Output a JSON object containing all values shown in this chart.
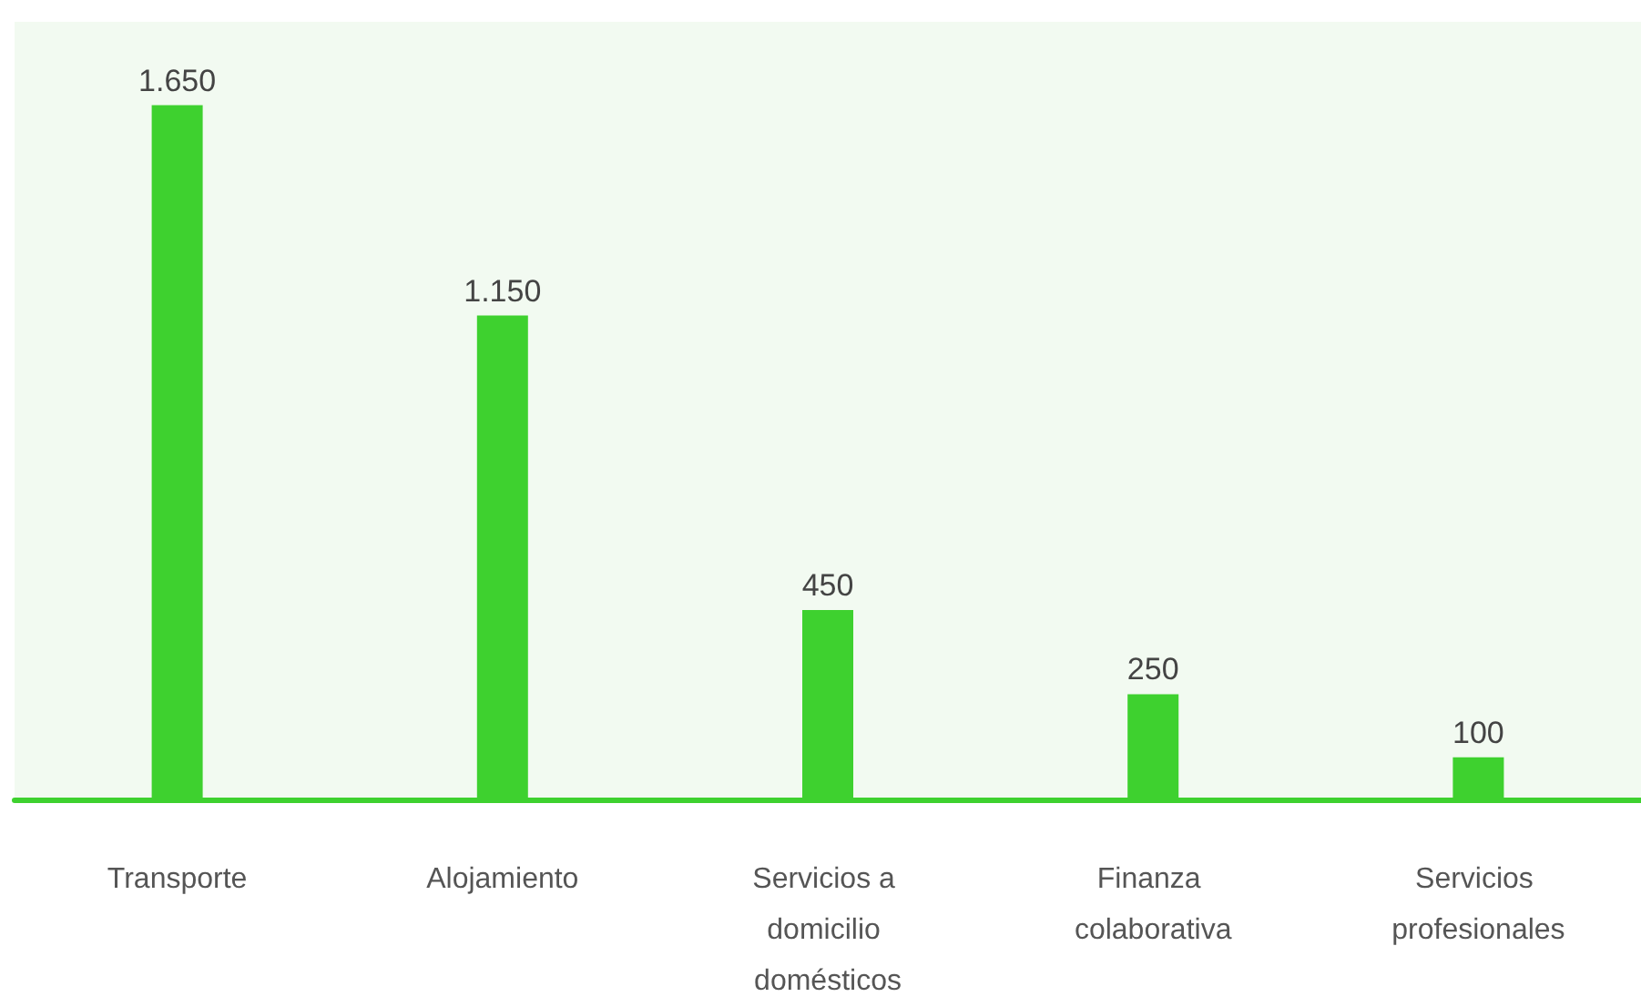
{
  "chart_data": {
    "type": "bar",
    "categories": [
      "Transporte",
      "Alojamiento",
      "Servicios a domicilio domésticos",
      "Finanza colaborativa",
      "Servicios profesionales"
    ],
    "values": [
      1650,
      1150,
      450,
      250,
      100
    ],
    "value_labels": [
      "1.650",
      "1.150",
      "450",
      "250",
      "100"
    ],
    "color": "#3ed12f"
  }
}
